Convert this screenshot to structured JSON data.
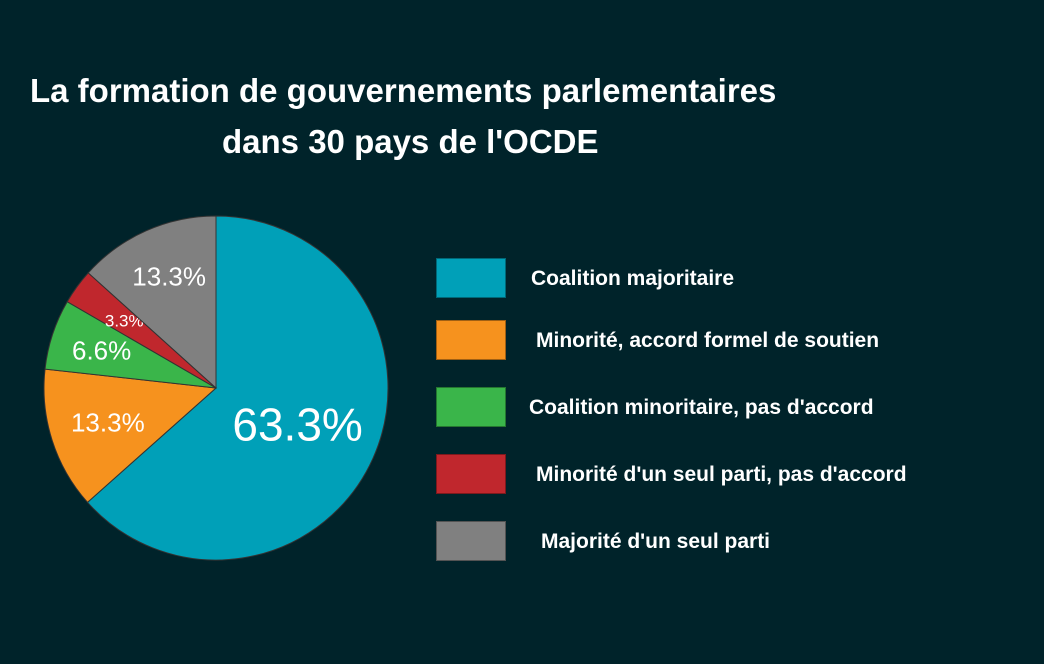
{
  "chart_data": {
    "type": "pie",
    "title": "La formation de gouvernements parlementaires dans 30 pays de l'OCDE",
    "title_lines": [
      "La formation de gouvernements parlementaires",
      "dans 30 pays de l'OCDE"
    ],
    "legend_position": "right",
    "slices": [
      {
        "label": "Coalition majoritaire",
        "value": 63.3,
        "display": "63.3%",
        "color": "#00a0b8"
      },
      {
        "label": "Minorité, accord formel de soutien",
        "value": 13.3,
        "display": "13.3%",
        "color": "#f6921e"
      },
      {
        "label": "Coalition minoritaire, pas d'accord",
        "value": 6.6,
        "display": "6.6%",
        "color": "#3ab54a"
      },
      {
        "label": "Minorité d'un seul parti, pas d'accord",
        "value": 3.3,
        "display": "3.3%",
        "color": "#c0272d"
      },
      {
        "label": "Majorité d'un seul parti",
        "value": 13.3,
        "display": "13.3%",
        "color": "#808080"
      }
    ]
  }
}
